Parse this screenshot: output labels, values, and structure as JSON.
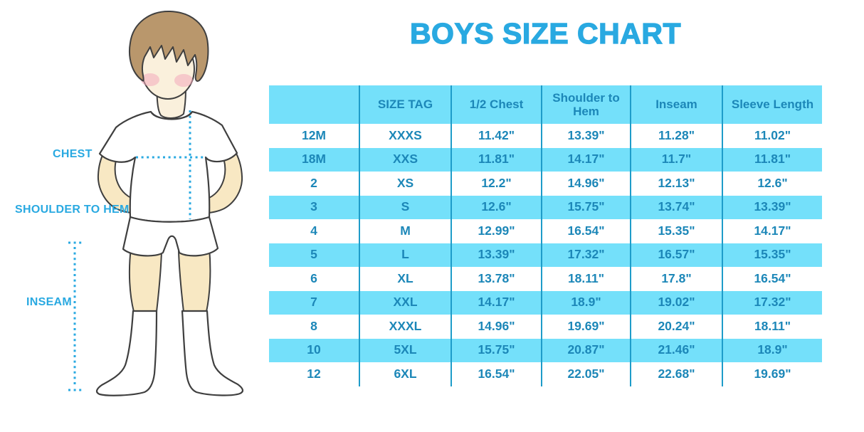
{
  "title": "BOYS SIZE CHART",
  "figure": {
    "labels": [
      {
        "id": "chest",
        "text": "CHEST"
      },
      {
        "id": "shoulder-to-hem",
        "text": "SHOULDER TO HEM"
      },
      {
        "id": "inseam",
        "text": "INSEAM"
      }
    ]
  },
  "chart_data": {
    "type": "table",
    "title": "BOYS SIZE CHART",
    "columns": [
      "",
      "SIZE TAG",
      "1/2 Chest",
      "Shoulder to Hem",
      "Inseam",
      "Sleeve Length"
    ],
    "rows": [
      [
        "12M",
        "XXXS",
        "11.42\"",
        "13.39\"",
        "11.28\"",
        "11.02\""
      ],
      [
        "18M",
        "XXS",
        "11.81\"",
        "14.17\"",
        "11.7\"",
        "11.81\""
      ],
      [
        "2",
        "XS",
        "12.2\"",
        "14.96\"",
        "12.13\"",
        "12.6\""
      ],
      [
        "3",
        "S",
        "12.6\"",
        "15.75\"",
        "13.74\"",
        "13.39\""
      ],
      [
        "4",
        "M",
        "12.99\"",
        "16.54\"",
        "15.35\"",
        "14.17\""
      ],
      [
        "5",
        "L",
        "13.39\"",
        "17.32\"",
        "16.57\"",
        "15.35\""
      ],
      [
        "6",
        "XL",
        "13.78\"",
        "18.11\"",
        "17.8\"",
        "16.54\""
      ],
      [
        "7",
        "XXL",
        "14.17\"",
        "18.9\"",
        "19.02\"",
        "17.32\""
      ],
      [
        "8",
        "XXXL",
        "14.96\"",
        "19.69\"",
        "20.24\"",
        "18.11\""
      ],
      [
        "10",
        "5XL",
        "15.75\"",
        "20.87\"",
        "21.46\"",
        "18.9\""
      ],
      [
        "12",
        "6XL",
        "16.54\"",
        "22.05\"",
        "22.68\"",
        "19.69\""
      ]
    ],
    "row_stripe_pattern": "odd rows highlighted",
    "legend_position": "none",
    "grid": "vertical column separators only"
  },
  "colors": {
    "accent": "#29A9E1",
    "table_fill": "#74E0FA",
    "table_border": "#1E9CC9",
    "table_text": "#1C87B8",
    "skin": "#F8E8C3",
    "face": "#FAF0DC",
    "hair": "#B9976C",
    "outline": "#3F3F3F",
    "cheek": "#F2A9BC"
  }
}
